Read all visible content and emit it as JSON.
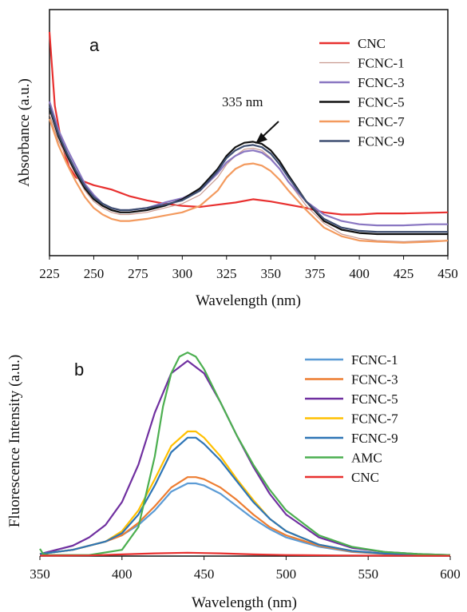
{
  "chart_data": [
    {
      "type": "line",
      "panel_label": "a",
      "xlabel": "Wavelength (nm)",
      "ylabel": "Absorbance (a.u.)",
      "xlim": [
        225,
        450
      ],
      "ylim": [
        0,
        1
      ],
      "xticks": [
        "225",
        "250",
        "275",
        "300",
        "325",
        "350",
        "375",
        "400",
        "425",
        "450"
      ],
      "yticks": [],
      "grid": false,
      "legend_position": "top-right",
      "annotation": {
        "text": "335 nm",
        "x": 340,
        "y": 0.495
      },
      "colors": {
        "CNC": "#e8302f",
        "FCNC-1": "#c99a91",
        "FCNC-3": "#8a77c2",
        "FCNC-5": "#111111",
        "FCNC-7": "#f39a5e",
        "FCNC-9": "#3f4f72"
      },
      "series": [
        {
          "name": "CNC",
          "x": [
            225,
            228,
            232,
            236,
            240,
            245,
            250,
            255,
            260,
            270,
            280,
            290,
            300,
            310,
            320,
            330,
            340,
            350,
            360,
            370,
            380,
            390,
            400,
            410,
            425,
            440,
            450
          ],
          "y": [
            1.0,
            0.66,
            0.48,
            0.38,
            0.33,
            0.31,
            0.295,
            0.285,
            0.275,
            0.245,
            0.225,
            0.21,
            0.2,
            0.195,
            0.205,
            0.215,
            0.23,
            0.22,
            0.205,
            0.19,
            0.17,
            0.16,
            0.16,
            0.165,
            0.165,
            0.168,
            0.17
          ]
        },
        {
          "name": "FCNC-1",
          "x": [
            225,
            230,
            235,
            240,
            245,
            250,
            255,
            260,
            265,
            270,
            280,
            290,
            300,
            310,
            320,
            325,
            330,
            335,
            340,
            345,
            350,
            355,
            360,
            370,
            380,
            390,
            400,
            410,
            425,
            440,
            450
          ],
          "y": [
            0.62,
            0.5,
            0.42,
            0.34,
            0.27,
            0.22,
            0.19,
            0.17,
            0.16,
            0.16,
            0.17,
            0.19,
            0.21,
            0.25,
            0.33,
            0.39,
            0.43,
            0.46,
            0.465,
            0.455,
            0.42,
            0.37,
            0.31,
            0.2,
            0.12,
            0.07,
            0.05,
            0.04,
            0.035,
            0.04,
            0.04
          ]
        },
        {
          "name": "FCNC-3",
          "x": [
            225,
            230,
            235,
            240,
            245,
            250,
            255,
            260,
            265,
            270,
            280,
            290,
            300,
            310,
            320,
            325,
            330,
            335,
            340,
            345,
            350,
            355,
            360,
            370,
            380,
            390,
            400,
            410,
            425,
            440,
            450
          ],
          "y": [
            0.68,
            0.55,
            0.46,
            0.38,
            0.3,
            0.25,
            0.21,
            0.19,
            0.18,
            0.18,
            0.19,
            0.215,
            0.235,
            0.27,
            0.35,
            0.4,
            0.43,
            0.45,
            0.455,
            0.445,
            0.415,
            0.37,
            0.31,
            0.22,
            0.16,
            0.13,
            0.115,
            0.11,
            0.11,
            0.115,
            0.115
          ]
        },
        {
          "name": "FCNC-5",
          "x": [
            225,
            230,
            235,
            240,
            245,
            250,
            255,
            260,
            265,
            270,
            280,
            290,
            300,
            310,
            320,
            325,
            330,
            335,
            340,
            345,
            350,
            355,
            360,
            370,
            380,
            390,
            400,
            410,
            425,
            440,
            450
          ],
          "y": [
            0.65,
            0.52,
            0.43,
            0.35,
            0.28,
            0.23,
            0.2,
            0.18,
            0.17,
            0.17,
            0.18,
            0.2,
            0.23,
            0.28,
            0.37,
            0.43,
            0.47,
            0.49,
            0.495,
            0.485,
            0.455,
            0.405,
            0.34,
            0.22,
            0.13,
            0.09,
            0.075,
            0.07,
            0.07,
            0.07,
            0.07
          ]
        },
        {
          "name": "FCNC-7",
          "x": [
            225,
            230,
            235,
            240,
            245,
            250,
            255,
            260,
            265,
            270,
            280,
            290,
            300,
            310,
            320,
            325,
            330,
            335,
            340,
            345,
            350,
            355,
            360,
            370,
            380,
            390,
            400,
            410,
            425,
            440,
            450
          ],
          "y": [
            0.6,
            0.48,
            0.39,
            0.31,
            0.24,
            0.19,
            0.16,
            0.14,
            0.13,
            0.13,
            0.14,
            0.155,
            0.17,
            0.2,
            0.27,
            0.33,
            0.37,
            0.39,
            0.395,
            0.385,
            0.36,
            0.32,
            0.27,
            0.18,
            0.1,
            0.06,
            0.04,
            0.035,
            0.03,
            0.035,
            0.04
          ]
        },
        {
          "name": "FCNC-9",
          "x": [
            225,
            230,
            235,
            240,
            245,
            250,
            255,
            260,
            265,
            270,
            280,
            290,
            300,
            310,
            320,
            325,
            330,
            335,
            340,
            345,
            350,
            355,
            360,
            370,
            380,
            390,
            400,
            410,
            425,
            440,
            450
          ],
          "y": [
            0.66,
            0.53,
            0.44,
            0.36,
            0.29,
            0.24,
            0.21,
            0.19,
            0.18,
            0.18,
            0.19,
            0.205,
            0.225,
            0.27,
            0.36,
            0.42,
            0.455,
            0.475,
            0.48,
            0.47,
            0.44,
            0.39,
            0.33,
            0.22,
            0.14,
            0.1,
            0.085,
            0.08,
            0.08,
            0.08,
            0.08
          ]
        }
      ]
    },
    {
      "type": "line",
      "panel_label": "b",
      "xlabel": "Wavelength (nm)",
      "ylabel": "Fluorescence Intensity  (a.u.)",
      "xlim": [
        350,
        600
      ],
      "ylim": [
        0,
        1
      ],
      "xticks": [
        "350",
        "400",
        "450",
        "500",
        "550",
        "600"
      ],
      "yticks": [],
      "grid": false,
      "legend_position": "top-right",
      "colors": {
        "FCNC-1": "#5b9bd5",
        "FCNC-3": "#ed7d31",
        "FCNC-5": "#7030a0",
        "FCNC-7": "#ffc000",
        "FCNC-9": "#2e75b6",
        "AMC": "#4caf50",
        "CNC": "#e8302f"
      },
      "series": [
        {
          "name": "FCNC-1",
          "x": [
            350,
            370,
            390,
            400,
            410,
            420,
            430,
            440,
            445,
            450,
            460,
            470,
            480,
            490,
            500,
            520,
            540,
            560,
            580,
            600
          ],
          "y": [
            0.01,
            0.03,
            0.07,
            0.1,
            0.15,
            0.22,
            0.31,
            0.35,
            0.35,
            0.34,
            0.3,
            0.24,
            0.18,
            0.13,
            0.09,
            0.045,
            0.02,
            0.01,
            0.005,
            0.003
          ]
        },
        {
          "name": "FCNC-3",
          "x": [
            350,
            370,
            390,
            400,
            410,
            420,
            430,
            440,
            445,
            450,
            460,
            470,
            480,
            490,
            500,
            520,
            540,
            560,
            580,
            600
          ],
          "y": [
            0.01,
            0.03,
            0.07,
            0.1,
            0.16,
            0.24,
            0.33,
            0.38,
            0.38,
            0.37,
            0.33,
            0.27,
            0.2,
            0.14,
            0.1,
            0.05,
            0.022,
            0.011,
            0.005,
            0.003
          ]
        },
        {
          "name": "FCNC-5",
          "x": [
            350,
            370,
            380,
            390,
            400,
            410,
            420,
            430,
            440,
            450,
            460,
            470,
            480,
            490,
            500,
            520,
            540,
            560,
            580,
            600
          ],
          "y": [
            0.01,
            0.05,
            0.09,
            0.15,
            0.26,
            0.44,
            0.69,
            0.88,
            0.94,
            0.88,
            0.74,
            0.58,
            0.43,
            0.3,
            0.2,
            0.09,
            0.04,
            0.02,
            0.01,
            0.005
          ]
        },
        {
          "name": "FCNC-7",
          "x": [
            350,
            370,
            390,
            400,
            410,
            420,
            430,
            440,
            445,
            450,
            460,
            470,
            480,
            490,
            500,
            520,
            540,
            560,
            580,
            600
          ],
          "y": [
            0.01,
            0.03,
            0.07,
            0.12,
            0.22,
            0.37,
            0.53,
            0.6,
            0.6,
            0.57,
            0.48,
            0.37,
            0.27,
            0.18,
            0.12,
            0.055,
            0.025,
            0.012,
            0.006,
            0.003
          ]
        },
        {
          "name": "FCNC-9",
          "x": [
            350,
            370,
            390,
            400,
            410,
            420,
            430,
            440,
            445,
            450,
            460,
            470,
            480,
            490,
            500,
            520,
            540,
            560,
            580,
            600
          ],
          "y": [
            0.01,
            0.03,
            0.07,
            0.11,
            0.2,
            0.34,
            0.5,
            0.57,
            0.57,
            0.54,
            0.46,
            0.36,
            0.26,
            0.18,
            0.12,
            0.055,
            0.025,
            0.012,
            0.006,
            0.003
          ]
        },
        {
          "name": "AMC",
          "x": [
            350,
            352,
            355,
            360,
            380,
            400,
            410,
            420,
            425,
            430,
            435,
            440,
            445,
            450,
            460,
            470,
            480,
            490,
            500,
            520,
            540,
            560,
            580,
            600
          ],
          "y": [
            0.035,
            0.01,
            0.005,
            0.005,
            0.005,
            0.03,
            0.14,
            0.48,
            0.72,
            0.88,
            0.96,
            0.98,
            0.96,
            0.9,
            0.74,
            0.58,
            0.44,
            0.32,
            0.22,
            0.1,
            0.045,
            0.02,
            0.01,
            0.005
          ]
        },
        {
          "name": "CNC",
          "x": [
            350,
            380,
            400,
            420,
            440,
            460,
            480,
            500,
            530,
            560,
            600
          ],
          "y": [
            0.002,
            0.003,
            0.008,
            0.013,
            0.016,
            0.013,
            0.008,
            0.005,
            0.003,
            0.002,
            0.001
          ]
        }
      ]
    }
  ]
}
